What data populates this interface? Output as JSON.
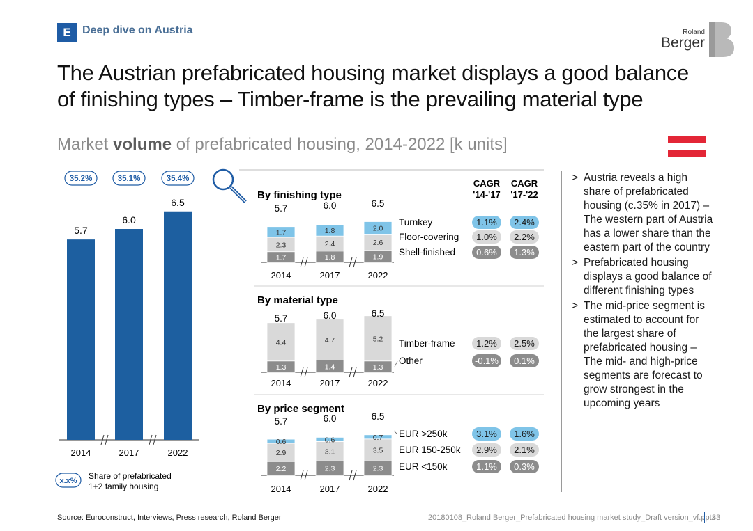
{
  "header": {
    "section_letter": "E",
    "section_label": "Deep dive on Austria",
    "logo_top": "Roland",
    "logo_main": "Berger",
    "title": "The Austrian prefabricated housing market displays a good balance of finishing types – Timber-frame is the prevailing material type",
    "subtitle_prefix": "Market ",
    "subtitle_bold": "volume",
    "subtitle_suffix": " of prefabricated housing, 2014-2022 [k units]"
  },
  "colors": {
    "bar_blue": "#1d5fa0",
    "light_blue": "#7fc4e8",
    "light_gray": "#d9d9d9",
    "mid_gray": "#8c8c8c",
    "flag_red": "#e32636",
    "badge_blue": "#1f5ca5"
  },
  "icons": [
    "magnifier-icon",
    "austria-flag-icon",
    "axis-break-icon"
  ],
  "legend": {
    "symbol": "x.x%",
    "text_line1": "Share of prefabricated",
    "text_line2": "1+2 family housing"
  },
  "cagr_headers": {
    "col1_line1": "CAGR",
    "col1_line2": "'14-'17",
    "col2_line1": "CAGR",
    "col2_line2": "'17-'22"
  },
  "chart_data": [
    {
      "id": "total",
      "type": "bar",
      "categories": [
        "2014",
        "2017",
        "2022"
      ],
      "values": [
        5.7,
        6.0,
        6.5
      ],
      "share_labels": [
        "35.2%",
        "35.1%",
        "35.4%"
      ],
      "axis_break": true
    },
    {
      "id": "finishing",
      "type": "bar",
      "stacked": true,
      "title": "By finishing type",
      "categories": [
        "2014",
        "2017",
        "2022"
      ],
      "totals": [
        5.7,
        6.0,
        6.5
      ],
      "series": [
        {
          "name": "Shell-finished",
          "values": [
            1.7,
            1.8,
            1.9
          ],
          "cagr_14_17": "0.6%",
          "cagr_17_22": "1.3%"
        },
        {
          "name": "Floor-covering",
          "values": [
            2.3,
            2.4,
            2.6
          ],
          "cagr_14_17": "1.0%",
          "cagr_17_22": "2.2%"
        },
        {
          "name": "Turnkey",
          "values": [
            1.7,
            1.8,
            2.0
          ],
          "cagr_14_17": "1.1%",
          "cagr_17_22": "2.4%"
        }
      ]
    },
    {
      "id": "material",
      "type": "bar",
      "stacked": true,
      "title": "By material type",
      "categories": [
        "2014",
        "2017",
        "2022"
      ],
      "totals": [
        5.7,
        6.0,
        6.5
      ],
      "series": [
        {
          "name": "Other",
          "values": [
            1.3,
            1.4,
            1.3
          ],
          "cagr_14_17": "-0.1%",
          "cagr_17_22": "0.1%"
        },
        {
          "name": "Timber-frame",
          "values": [
            4.4,
            4.7,
            5.2
          ],
          "cagr_14_17": "1.2%",
          "cagr_17_22": "2.5%"
        }
      ]
    },
    {
      "id": "price",
      "type": "bar",
      "stacked": true,
      "title": "By price segment",
      "categories": [
        "2014",
        "2017",
        "2022"
      ],
      "totals": [
        5.7,
        6.0,
        6.5
      ],
      "series": [
        {
          "name": "EUR <150k",
          "values": [
            2.2,
            2.3,
            2.3
          ],
          "cagr_14_17": "1.1%",
          "cagr_17_22": "0.3%"
        },
        {
          "name": "EUR 150-250k",
          "values": [
            2.9,
            3.1,
            3.5
          ],
          "cagr_14_17": "2.9%",
          "cagr_17_22": "2.1%"
        },
        {
          "name": "EUR >250k",
          "values": [
            0.6,
            0.6,
            0.7
          ],
          "cagr_14_17": "3.1%",
          "cagr_17_22": "1.6%"
        }
      ]
    }
  ],
  "notes": [
    "Austria reveals a high share of prefabricated housing (c.35% in 2017) – The western part of Austria has a lower share than the eastern part of the country",
    "Prefabricated housing displays a good balance of different finishing types",
    "The mid-price segment is estimated to account for the largest share of prefabricated housing – The mid- and high-price segments are forecast to grow strongest in the upcoming years"
  ],
  "footer": {
    "source": "Source: Euroconstruct, Interviews, Press research, Roland Berger",
    "file": "20180108_Roland Berger_Prefabricated housing market study_Draft version_vf.pptx",
    "page": "33"
  }
}
